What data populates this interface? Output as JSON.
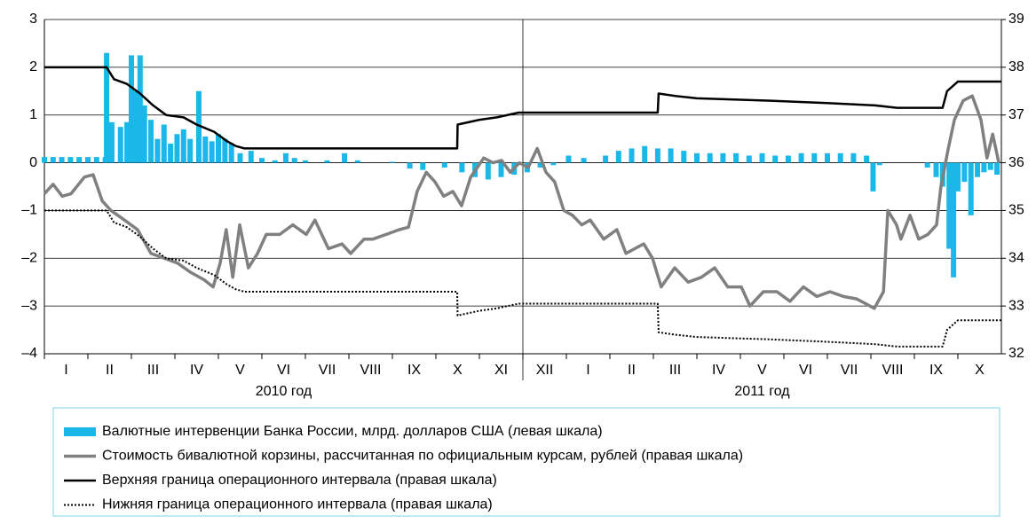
{
  "chart_data": {
    "type": "combo",
    "categories": [
      "I",
      "II",
      "III",
      "IV",
      "V",
      "VI",
      "VII",
      "VIII",
      "IX",
      "X",
      "XI",
      "XII",
      "I",
      "II",
      "III",
      "IV",
      "V",
      "VI",
      "VII",
      "VIII",
      "IX",
      "X"
    ],
    "year_labels": [
      "2010 год",
      "2011 год"
    ],
    "xlim": [
      0,
      22
    ],
    "ylim": [
      -4,
      3
    ],
    "yticks": [
      {
        "value": -4,
        "label": "–4"
      },
      {
        "value": -3,
        "label": "–3"
      },
      {
        "value": -2,
        "label": "–2"
      },
      {
        "value": -1,
        "label": "–1"
      },
      0,
      1,
      2,
      3
    ],
    "y2lim": [
      32,
      39
    ],
    "y2ticks": [
      32,
      33,
      34,
      35,
      36,
      37,
      38,
      39
    ],
    "grid": true,
    "series": [
      {
        "name": "Валютные интервенции Банка России, млрд. долларов США (левая шкала)",
        "type": "bar",
        "color": "#1ab8e8",
        "x": [
          0,
          0.2,
          0.4,
          0.6,
          0.8,
          1.0,
          1.2,
          1.4,
          1.43,
          1.55,
          1.75,
          1.9,
          2.0,
          2.1,
          2.2,
          2.3,
          2.45,
          2.6,
          2.75,
          2.9,
          3.05,
          3.2,
          3.35,
          3.55,
          3.7,
          3.85,
          4.0,
          4.15,
          4.3,
          4.5,
          4.75,
          5.0,
          5.3,
          5.55,
          5.75,
          6.0,
          6.5,
          6.9,
          7.2,
          8.0,
          8.4,
          8.7,
          9.2,
          9.6,
          9.9,
          10.2,
          10.5,
          10.8,
          11.1,
          11.4,
          11.7,
          12.05,
          12.4,
          12.9,
          13.2,
          13.5,
          13.8,
          14.1,
          14.4,
          14.7,
          15.0,
          15.3,
          15.6,
          15.9,
          16.2,
          16.5,
          16.8,
          17.1,
          17.4,
          17.7,
          18.0,
          18.3,
          18.6,
          18.9,
          19.05,
          19.2,
          20.3,
          20.5,
          20.65,
          20.8,
          20.9,
          21.0,
          21.15,
          21.3,
          21.45,
          21.6,
          21.75,
          21.9
        ],
        "values": [
          0.12,
          0.12,
          0.12,
          0.12,
          0.12,
          0.12,
          0.12,
          0.12,
          2.3,
          0.85,
          0.75,
          0.85,
          2.25,
          1.5,
          2.25,
          1.2,
          0.9,
          0.5,
          0.8,
          0.4,
          0.6,
          0.7,
          0.5,
          1.5,
          0.55,
          0.45,
          0.6,
          0.5,
          0.4,
          0.2,
          0.25,
          0.1,
          0.05,
          0.2,
          0.1,
          0.05,
          0.05,
          0.2,
          0.05,
          0.02,
          -0.12,
          -0.15,
          -0.1,
          -0.2,
          -0.3,
          -0.35,
          -0.3,
          -0.25,
          -0.2,
          -0.1,
          -0.05,
          0.15,
          0.1,
          0.15,
          0.25,
          0.3,
          0.35,
          0.3,
          0.3,
          0.25,
          0.2,
          0.2,
          0.2,
          0.2,
          0.15,
          0.2,
          0.15,
          0.15,
          0.2,
          0.2,
          0.2,
          0.2,
          0.2,
          0.15,
          -0.6,
          -0.05,
          -0.1,
          -0.3,
          -0.5,
          -1.8,
          -2.4,
          -0.6,
          -0.4,
          -1.1,
          -0.3,
          -0.2,
          -0.15,
          -0.25
        ]
      },
      {
        "name": "Стоимость бивалютной корзины, рассчитанная по официальным курсам, рублей (правая шкала)",
        "type": "line",
        "axis": "y2",
        "color": "#808080",
        "width": 3.5,
        "x": [
          0,
          0.2,
          0.41,
          0.61,
          0.92,
          1.12,
          1.33,
          1.53,
          1.84,
          2.14,
          2.45,
          2.76,
          3.06,
          3.37,
          3.67,
          3.88,
          4.04,
          4.18,
          4.33,
          4.49,
          4.69,
          4.9,
          5.1,
          5.41,
          5.71,
          6.02,
          6.22,
          6.53,
          6.84,
          7.04,
          7.35,
          7.55,
          7.86,
          8.16,
          8.37,
          8.57,
          8.78,
          8.98,
          9.18,
          9.39,
          9.59,
          9.8,
          10.1,
          10.31,
          10.51,
          10.71,
          10.92,
          11.12,
          11.33,
          11.53,
          11.73,
          11.94,
          12.14,
          12.35,
          12.55,
          12.86,
          13.16,
          13.37,
          13.57,
          13.78,
          13.98,
          14.18,
          14.49,
          14.8,
          15.1,
          15.41,
          15.71,
          16.02,
          16.22,
          16.53,
          16.84,
          17.14,
          17.45,
          17.76,
          18.06,
          18.37,
          18.67,
          18.88,
          19.08,
          19.29,
          19.39,
          19.59,
          19.69,
          19.9,
          20.1,
          20.31,
          20.51,
          20.61,
          20.78,
          20.92,
          21.12,
          21.33,
          21.53,
          21.67,
          21.8,
          21.94
        ],
        "values": [
          35.35,
          35.55,
          35.3,
          35.35,
          35.7,
          35.75,
          35.2,
          35.0,
          34.8,
          34.6,
          34.1,
          34.0,
          33.9,
          33.7,
          33.55,
          33.4,
          33.9,
          34.6,
          33.6,
          34.7,
          33.8,
          34.1,
          34.5,
          34.5,
          34.7,
          34.5,
          34.8,
          34.2,
          34.3,
          34.1,
          34.4,
          34.4,
          34.5,
          34.6,
          34.65,
          35.4,
          35.8,
          35.6,
          35.3,
          35.4,
          35.1,
          35.7,
          36.1,
          36.0,
          36.05,
          35.8,
          36.0,
          35.9,
          36.3,
          35.8,
          35.6,
          35.0,
          34.9,
          34.7,
          34.8,
          34.4,
          34.6,
          34.1,
          34.2,
          34.3,
          34.0,
          33.4,
          33.8,
          33.5,
          33.6,
          33.8,
          33.4,
          33.4,
          33.0,
          33.3,
          33.3,
          33.1,
          33.4,
          33.2,
          33.3,
          33.2,
          33.15,
          33.05,
          32.95,
          33.3,
          35.0,
          34.7,
          34.4,
          34.9,
          34.4,
          34.5,
          34.7,
          35.5,
          36.3,
          36.9,
          37.3,
          37.4,
          36.9,
          36.1,
          36.6,
          36.0
        ]
      },
      {
        "name": "Верхняя граница операционного интервала (правая шкала)",
        "type": "line",
        "axis": "y2",
        "color": "#000000",
        "width": 2.5,
        "x": [
          0,
          1.43,
          1.6,
          1.9,
          2.2,
          2.5,
          2.8,
          3.2,
          3.5,
          3.9,
          4.2,
          4.4,
          4.6,
          9.49,
          9.5,
          10.0,
          10.4,
          10.9,
          14.1,
          14.12,
          14.5,
          15.0,
          16.7,
          18.0,
          19.1,
          19.6,
          20.65,
          20.75,
          21.0,
          22
        ],
        "values": [
          38,
          38,
          37.75,
          37.65,
          37.45,
          37.2,
          37.0,
          36.95,
          36.8,
          36.65,
          36.45,
          36.35,
          36.3,
          36.3,
          36.8,
          36.9,
          36.95,
          37.05,
          37.05,
          37.45,
          37.4,
          37.35,
          37.3,
          37.25,
          37.2,
          37.15,
          37.15,
          37.5,
          37.7,
          37.7
        ]
      },
      {
        "name": "Нижняя граница операционного интервала (правая шкала)",
        "type": "line",
        "axis": "y2",
        "color": "#000000",
        "width": 2,
        "dashed": true,
        "x": [
          0,
          1.43,
          1.6,
          1.9,
          2.2,
          2.5,
          2.8,
          3.2,
          3.5,
          3.9,
          4.2,
          4.4,
          4.6,
          9.49,
          9.5,
          10.0,
          10.4,
          10.9,
          14.1,
          14.12,
          14.5,
          15.0,
          16.7,
          18.0,
          19.1,
          19.6,
          20.65,
          20.75,
          21.0,
          22
        ],
        "values": [
          35,
          35,
          34.75,
          34.65,
          34.45,
          34.2,
          34.0,
          33.95,
          33.8,
          33.65,
          33.45,
          33.35,
          33.3,
          33.3,
          32.8,
          32.9,
          32.95,
          33.05,
          33.05,
          32.45,
          32.4,
          32.35,
          32.3,
          32.25,
          32.2,
          32.15,
          32.15,
          32.5,
          32.7,
          32.7
        ]
      }
    ]
  }
}
